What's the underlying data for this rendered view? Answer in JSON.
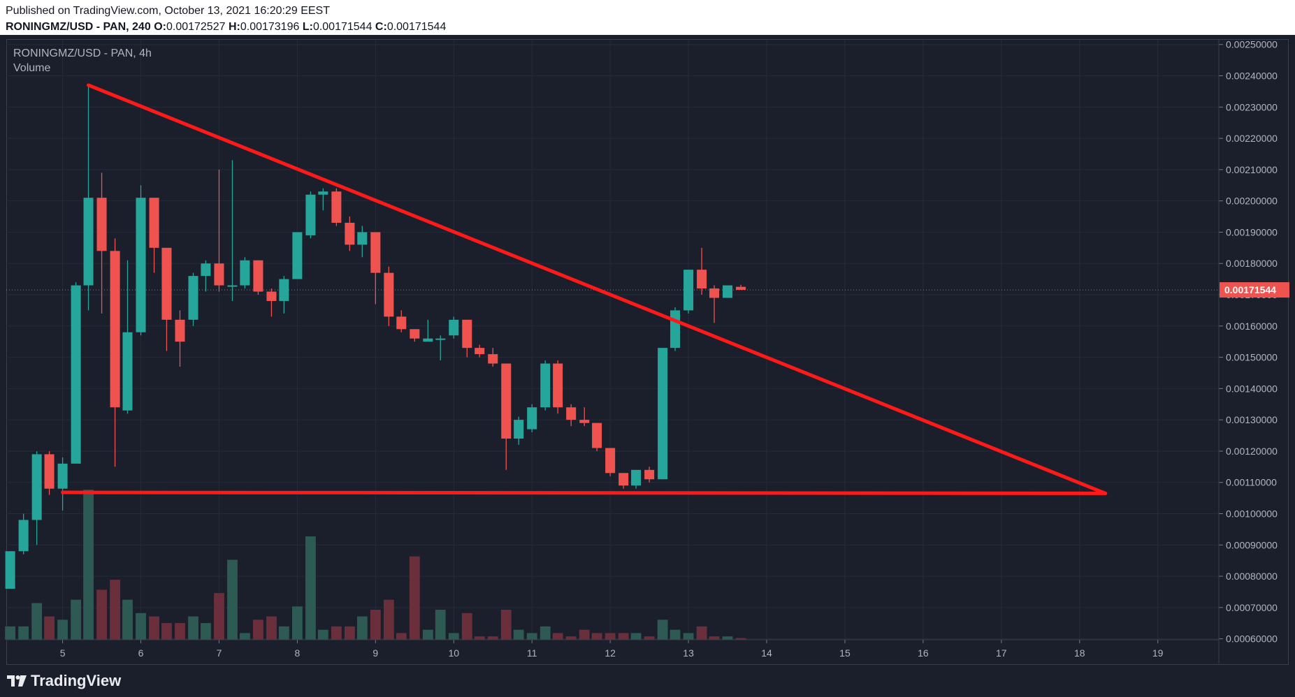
{
  "header": {
    "published": "Published on TradingView.com, October 13, 2021 16:20:29 EEST",
    "symbol_line": "RONINGMZ/USD - PAN, 240",
    "o_label": "O:",
    "o_value": "0.00172527",
    "h_label": "H:",
    "h_value": "0.00173196",
    "l_label": "L:",
    "l_value": "0.00171544",
    "c_label": "C:",
    "c_value": "0.00171544"
  },
  "legend": {
    "symbol": "RONINGMZ/USD - PAN, 4h",
    "volume": "Volume"
  },
  "footer": {
    "brand": "TradingView"
  },
  "colors": {
    "background": "#1b1f2c",
    "up": "#26a69a",
    "down": "#ef5350",
    "volume_up": "#2e5a54",
    "volume_down": "#6b2f3c",
    "trendline": "#ff1a1a",
    "grid": "#262b3a",
    "price_label_bg": "#ef5350"
  },
  "chart_data": {
    "type": "candlestick",
    "title": "RONINGMZ/USD - PAN, 4h",
    "y_axis": {
      "ticks": [
        "0.00250000",
        "0.00240000",
        "0.00230000",
        "0.00220000",
        "0.00210000",
        "0.00200000",
        "0.00190000",
        "0.00180000",
        "0.00170000",
        "0.00160000",
        "0.00150000",
        "0.00140000",
        "0.00130000",
        "0.00120000",
        "0.00110000",
        "0.00100000",
        "0.00090000",
        "0.00080000",
        "0.00070000",
        "0.00060000"
      ],
      "range": [
        0.000597,
        0.002515
      ]
    },
    "x_axis": {
      "ticks": [
        "5",
        "6",
        "7",
        "8",
        "9",
        "10",
        "11",
        "12",
        "13",
        "14",
        "15",
        "16",
        "17",
        "18",
        "19"
      ],
      "range_days": [
        4.28,
        19.78
      ]
    },
    "last_price": "0.00171544",
    "candles": [
      {
        "t": 4.33,
        "o": 0.00076,
        "h": 0.00088,
        "l": 0.00076,
        "c": 0.00088,
        "v": 0.04
      },
      {
        "t": 4.5,
        "o": 0.00088,
        "h": 0.001,
        "l": 0.00087,
        "c": 0.00098,
        "v": 0.04
      },
      {
        "t": 4.67,
        "o": 0.00098,
        "h": 0.0012,
        "l": 0.0009,
        "c": 0.00119,
        "v": 0.11
      },
      {
        "t": 4.83,
        "o": 0.00119,
        "h": 0.0012,
        "l": 0.00106,
        "c": 0.00108,
        "v": 0.07
      },
      {
        "t": 5.0,
        "o": 0.00108,
        "h": 0.00118,
        "l": 0.00101,
        "c": 0.00116,
        "v": 0.06
      },
      {
        "t": 5.17,
        "o": 0.00116,
        "h": 0.00174,
        "l": 0.00116,
        "c": 0.00173,
        "v": 0.12
      },
      {
        "t": 5.33,
        "o": 0.00173,
        "h": 0.00237,
        "l": 0.00165,
        "c": 0.00201,
        "v": 0.45
      },
      {
        "t": 5.5,
        "o": 0.00201,
        "h": 0.00209,
        "l": 0.00164,
        "c": 0.00184,
        "v": 0.15
      },
      {
        "t": 5.67,
        "o": 0.00184,
        "h": 0.00188,
        "l": 0.00115,
        "c": 0.00134,
        "v": 0.18
      },
      {
        "t": 5.83,
        "o": 0.00133,
        "h": 0.00181,
        "l": 0.00132,
        "c": 0.00158,
        "v": 0.12
      },
      {
        "t": 6.0,
        "o": 0.00158,
        "h": 0.00205,
        "l": 0.00157,
        "c": 0.00201,
        "v": 0.08
      },
      {
        "t": 6.17,
        "o": 0.00201,
        "h": 0.00201,
        "l": 0.00177,
        "c": 0.00185,
        "v": 0.07
      },
      {
        "t": 6.33,
        "o": 0.00185,
        "h": 0.00185,
        "l": 0.00152,
        "c": 0.00162,
        "v": 0.05
      },
      {
        "t": 6.5,
        "o": 0.00162,
        "h": 0.00165,
        "l": 0.00147,
        "c": 0.00155,
        "v": 0.05
      },
      {
        "t": 6.67,
        "o": 0.00162,
        "h": 0.00177,
        "l": 0.0016,
        "c": 0.00176,
        "v": 0.07
      },
      {
        "t": 6.83,
        "o": 0.00176,
        "h": 0.00181,
        "l": 0.00171,
        "c": 0.0018,
        "v": 0.05
      },
      {
        "t": 7.0,
        "o": 0.0018,
        "h": 0.0021,
        "l": 0.00171,
        "c": 0.00173,
        "v": 0.14
      },
      {
        "t": 7.17,
        "o": 0.00173,
        "h": 0.00213,
        "l": 0.00168,
        "c": 0.00173,
        "v": 0.24
      },
      {
        "t": 7.33,
        "o": 0.00173,
        "h": 0.00182,
        "l": 0.00172,
        "c": 0.00181,
        "v": 0.02
      },
      {
        "t": 7.5,
        "o": 0.00181,
        "h": 0.00181,
        "l": 0.0017,
        "c": 0.00171,
        "v": 0.06
      },
      {
        "t": 7.67,
        "o": 0.00171,
        "h": 0.00172,
        "l": 0.00163,
        "c": 0.00168,
        "v": 0.07
      },
      {
        "t": 7.83,
        "o": 0.00168,
        "h": 0.00176,
        "l": 0.00164,
        "c": 0.00175,
        "v": 0.04
      },
      {
        "t": 8.0,
        "o": 0.00175,
        "h": 0.0019,
        "l": 0.00175,
        "c": 0.0019,
        "v": 0.1
      },
      {
        "t": 8.17,
        "o": 0.00189,
        "h": 0.00203,
        "l": 0.00188,
        "c": 0.00202,
        "v": 0.31
      },
      {
        "t": 8.33,
        "o": 0.00202,
        "h": 0.00204,
        "l": 0.00197,
        "c": 0.00203,
        "v": 0.03
      },
      {
        "t": 8.5,
        "o": 0.00203,
        "h": 0.00204,
        "l": 0.00192,
        "c": 0.00193,
        "v": 0.04
      },
      {
        "t": 8.67,
        "o": 0.00193,
        "h": 0.00195,
        "l": 0.00184,
        "c": 0.00186,
        "v": 0.04
      },
      {
        "t": 8.83,
        "o": 0.00186,
        "h": 0.00192,
        "l": 0.00182,
        "c": 0.0019,
        "v": 0.07
      },
      {
        "t": 9.0,
        "o": 0.0019,
        "h": 0.0019,
        "l": 0.00167,
        "c": 0.00177,
        "v": 0.09
      },
      {
        "t": 9.17,
        "o": 0.00177,
        "h": 0.00179,
        "l": 0.0016,
        "c": 0.00163,
        "v": 0.12
      },
      {
        "t": 9.33,
        "o": 0.00163,
        "h": 0.00165,
        "l": 0.00158,
        "c": 0.00159,
        "v": 0.02
      },
      {
        "t": 9.5,
        "o": 0.00159,
        "h": 0.00159,
        "l": 0.00155,
        "c": 0.00156,
        "v": 0.25
      },
      {
        "t": 9.67,
        "o": 0.00155,
        "h": 0.00162,
        "l": 0.00155,
        "c": 0.00156,
        "v": 0.03
      },
      {
        "t": 9.83,
        "o": 0.00156,
        "h": 0.00157,
        "l": 0.00149,
        "c": 0.00156,
        "v": 0.09
      },
      {
        "t": 10.0,
        "o": 0.00157,
        "h": 0.00163,
        "l": 0.00156,
        "c": 0.00162,
        "v": 0.02
      },
      {
        "t": 10.17,
        "o": 0.00162,
        "h": 0.00162,
        "l": 0.0015,
        "c": 0.00153,
        "v": 0.08
      },
      {
        "t": 10.33,
        "o": 0.00153,
        "h": 0.00154,
        "l": 0.0015,
        "c": 0.00151,
        "v": 0.01
      },
      {
        "t": 10.5,
        "o": 0.00151,
        "h": 0.00153,
        "l": 0.00147,
        "c": 0.00148,
        "v": 0.01
      },
      {
        "t": 10.67,
        "o": 0.00148,
        "h": 0.00148,
        "l": 0.00114,
        "c": 0.00124,
        "v": 0.09
      },
      {
        "t": 10.83,
        "o": 0.00124,
        "h": 0.00131,
        "l": 0.00122,
        "c": 0.0013,
        "v": 0.03
      },
      {
        "t": 11.0,
        "o": 0.00127,
        "h": 0.00135,
        "l": 0.00126,
        "c": 0.00134,
        "v": 0.02
      },
      {
        "t": 11.17,
        "o": 0.00134,
        "h": 0.00149,
        "l": 0.00133,
        "c": 0.00148,
        "v": 0.04
      },
      {
        "t": 11.33,
        "o": 0.00148,
        "h": 0.00149,
        "l": 0.00132,
        "c": 0.00134,
        "v": 0.02
      },
      {
        "t": 11.5,
        "o": 0.00134,
        "h": 0.00135,
        "l": 0.00128,
        "c": 0.0013,
        "v": 0.01
      },
      {
        "t": 11.67,
        "o": 0.0013,
        "h": 0.00134,
        "l": 0.00128,
        "c": 0.00129,
        "v": 0.03
      },
      {
        "t": 11.83,
        "o": 0.00129,
        "h": 0.00129,
        "l": 0.0012,
        "c": 0.00121,
        "v": 0.02
      },
      {
        "t": 12.0,
        "o": 0.00121,
        "h": 0.00121,
        "l": 0.00112,
        "c": 0.00113,
        "v": 0.02
      },
      {
        "t": 12.17,
        "o": 0.00113,
        "h": 0.00113,
        "l": 0.00108,
        "c": 0.00109,
        "v": 0.02
      },
      {
        "t": 12.33,
        "o": 0.00109,
        "h": 0.00114,
        "l": 0.00108,
        "c": 0.00114,
        "v": 0.02
      },
      {
        "t": 12.5,
        "o": 0.00114,
        "h": 0.00115,
        "l": 0.0011,
        "c": 0.00111,
        "v": 0.01
      },
      {
        "t": 12.67,
        "o": 0.00111,
        "h": 0.00153,
        "l": 0.00111,
        "c": 0.00153,
        "v": 0.06
      },
      {
        "t": 12.83,
        "o": 0.00153,
        "h": 0.00166,
        "l": 0.00152,
        "c": 0.00165,
        "v": 0.03
      },
      {
        "t": 13.0,
        "o": 0.00165,
        "h": 0.00178,
        "l": 0.00164,
        "c": 0.00178,
        "v": 0.02
      },
      {
        "t": 13.17,
        "o": 0.00178,
        "h": 0.00185,
        "l": 0.0017,
        "c": 0.00172,
        "v": 0.04
      },
      {
        "t": 13.33,
        "o": 0.00172,
        "h": 0.00173,
        "l": 0.00161,
        "c": 0.00169,
        "v": 0.01
      },
      {
        "t": 13.5,
        "o": 0.00169,
        "h": 0.00173,
        "l": 0.00169,
        "c": 0.00173,
        "v": 0.01
      },
      {
        "t": 13.67,
        "o": 0.00172527,
        "h": 0.00173196,
        "l": 0.00171544,
        "c": 0.00171544,
        "v": 0.005
      }
    ],
    "annotations": [
      {
        "type": "trendline",
        "from": {
          "t": 5.33,
          "p": 0.00237
        },
        "to": {
          "t": 18.33,
          "p": 0.001065
        }
      },
      {
        "type": "trendline",
        "from": {
          "t": 5.0,
          "p": 0.001068
        },
        "to": {
          "t": 18.33,
          "p": 0.001065
        }
      }
    ]
  }
}
